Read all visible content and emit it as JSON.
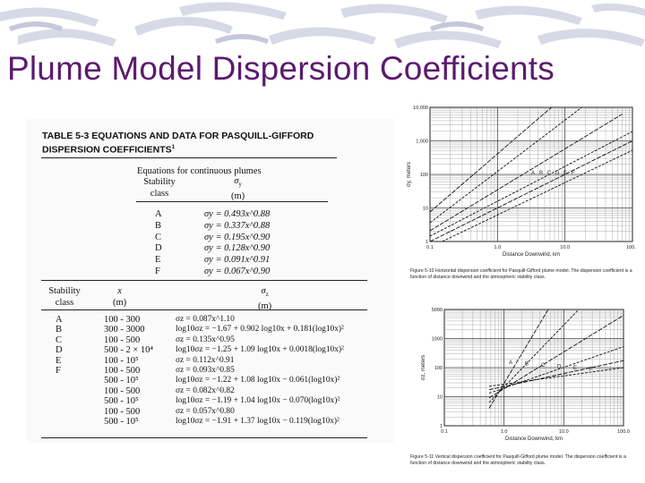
{
  "slide": {
    "title": "Plume Model Dispersion Coefficients"
  },
  "table": {
    "title_line1": "TABLE 5-3   EQUATIONS AND DATA FOR PASQUILL-GIFFORD",
    "title_line2": "DISPERSION COEFFICIENTS",
    "title_sup": "1",
    "continuous_heading": "Equations for continuous plumes",
    "stability_line1": "Stability",
    "stability_line2": "class",
    "sigma_y_heading": "σ",
    "sigma_y_sub": "y",
    "meters": "(m)",
    "horizontal_classes": [
      "A",
      "B",
      "C",
      "D",
      "E",
      "F"
    ],
    "horizontal_equations": [
      "σy = 0.493x^0.88",
      "σy = 0.337x^0.88",
      "σy = 0.195x^0.90",
      "σy = 0.128x^0.90",
      "σy = 0.091x^0.91",
      "σy = 0.067x^0.90"
    ],
    "vertical_class_heading_1": "Stability",
    "vertical_class_heading_2": "class",
    "x_heading": "x",
    "x_unit": "(m)",
    "sigma_z_heading": "σ",
    "sigma_z_sub": "z",
    "vertical_classes": [
      "A",
      "",
      "B",
      "",
      "C",
      "D",
      "",
      "E",
      "",
      "F",
      ""
    ],
    "vertical_ranges": [
      "100 - 300",
      "300 - 3000",
      "100 - 500",
      "500 - 2 × 10⁴",
      "100 - 10⁵",
      "100 - 500",
      "500 - 10⁵",
      "100 - 500",
      "500 - 10⁵",
      "100 - 500",
      "500 - 10⁵"
    ],
    "vertical_equations": [
      "σz = 0.087x^1.10",
      "log10σz = −1.67 + 0.902 log10x + 0.181(log10x)²",
      "σz = 0.135x^0.95",
      "log10σz = −1.25 + 1.09 log10x + 0.0018(log10x)²",
      "σz = 0.112x^0.91",
      "σz = 0.093x^0.85",
      "log10σz = −1.22 + 1.08 log10x − 0.061(log10x)²",
      "σz = 0.082x^0.82",
      "log10σz = −1.19 + 1.04 log10x − 0.070(log10x)²",
      "σz = 0.057x^0.80",
      "log10σz = −1.91 + 1.37 log10x − 0.119(log10x)²"
    ]
  },
  "figure_y": {
    "ylabel": "σy, meters",
    "xlabel": "Distance Downwind, km",
    "yticks": [
      "10,000",
      "1,000",
      "100",
      "10",
      "1"
    ],
    "xticks": [
      "0.1",
      "1.0",
      "10.0",
      "100.0"
    ],
    "class_labels": [
      "A",
      "B",
      "C",
      "D",
      "E",
      "F"
    ],
    "caption": "Figure 5-10  Horizontal dispersion coefficient for Pasquill-Gifford plume model. The dispersion coefficient is a function of distance downwind and the atmospheric stability class."
  },
  "figure_z": {
    "ylabel": "σz, meters",
    "xlabel": "Distance Downwind, km",
    "yticks": [
      "5000",
      "1000",
      "100",
      "10",
      "1"
    ],
    "xticks": [
      "0.1",
      "1.0",
      "10.0",
      "100.0"
    ],
    "class_labels": [
      "A",
      "B",
      "C",
      "D",
      "E",
      "F"
    ],
    "caption": "Figure 5-11  Vertical dispersion coefficient for Pasquill-Gifford plume model. The dispersion coefficient is a function of distance downwind and the atmospheric stability class."
  }
}
